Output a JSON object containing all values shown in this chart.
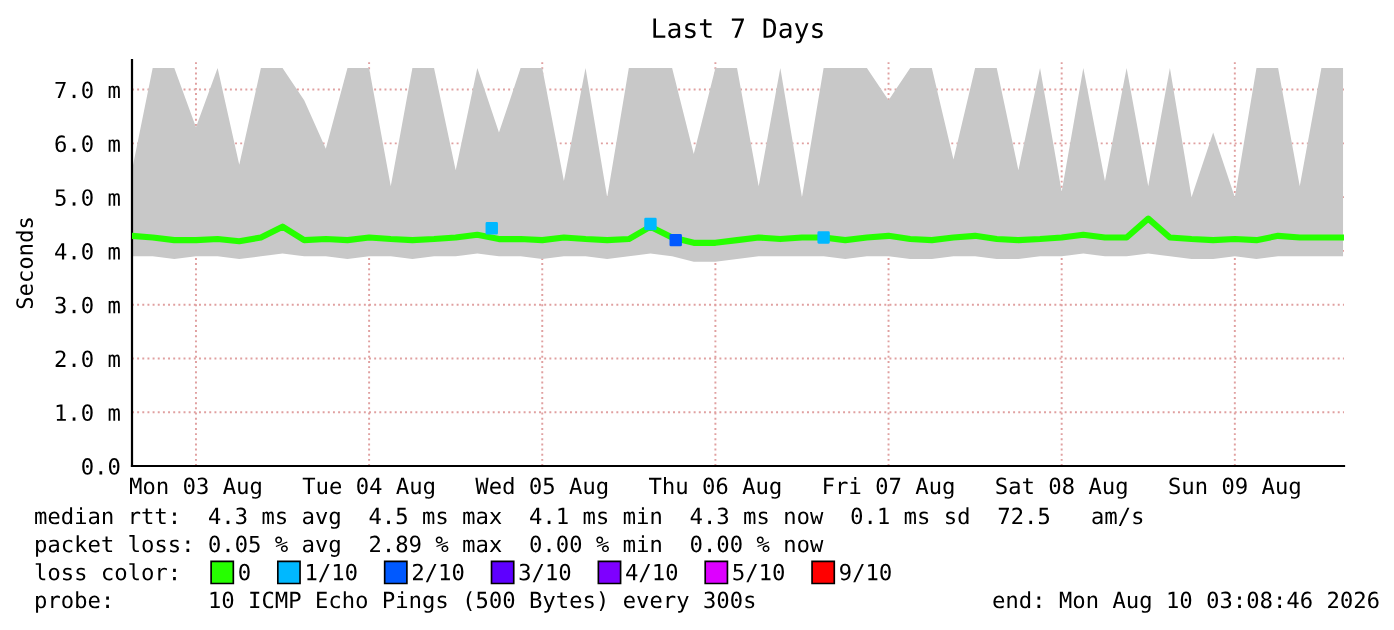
{
  "chart_data": {
    "type": "line",
    "title": "Last 7 Days",
    "ylabel": "Seconds",
    "legend_title": "loss color:",
    "x": [
      "2026-08-03T03:08",
      "2026-08-03T06:00",
      "2026-08-03T09:00",
      "2026-08-03T12:00",
      "2026-08-03T15:00",
      "2026-08-03T18:00",
      "2026-08-03T21:00",
      "2026-08-04T00:00",
      "2026-08-04T03:00",
      "2026-08-04T06:00",
      "2026-08-04T09:00",
      "2026-08-04T12:00",
      "2026-08-04T15:00",
      "2026-08-04T18:00",
      "2026-08-04T21:00",
      "2026-08-05T00:00",
      "2026-08-05T03:00",
      "2026-08-05T06:00",
      "2026-08-05T09:00",
      "2026-08-05T12:00",
      "2026-08-05T15:00",
      "2026-08-05T18:00",
      "2026-08-05T21:00",
      "2026-08-06T00:00",
      "2026-08-06T03:00",
      "2026-08-06T06:00",
      "2026-08-06T09:00",
      "2026-08-06T12:00",
      "2026-08-06T15:00",
      "2026-08-06T18:00",
      "2026-08-06T21:00",
      "2026-08-07T00:00",
      "2026-08-07T03:00",
      "2026-08-07T06:00",
      "2026-08-07T09:00",
      "2026-08-07T12:00",
      "2026-08-07T15:00",
      "2026-08-07T18:00",
      "2026-08-07T21:00",
      "2026-08-08T00:00",
      "2026-08-08T03:00",
      "2026-08-08T06:00",
      "2026-08-08T09:00",
      "2026-08-08T12:00",
      "2026-08-08T15:00",
      "2026-08-08T18:00",
      "2026-08-08T21:00",
      "2026-08-09T00:00",
      "2026-08-09T03:00",
      "2026-08-09T06:00",
      "2026-08-09T09:00",
      "2026-08-09T12:00",
      "2026-08-09T15:00",
      "2026-08-09T18:00",
      "2026-08-09T21:00",
      "2026-08-10T00:00",
      "2026-08-10T03:00"
    ],
    "series": [
      {
        "name": "0",
        "color": "#26ff00",
        "values": [
          4.28,
          4.25,
          4.2,
          4.2,
          4.22,
          4.18,
          4.25,
          4.45,
          4.2,
          4.22,
          4.2,
          4.25,
          4.22,
          4.2,
          4.22,
          4.25,
          4.3,
          4.22,
          4.22,
          4.2,
          4.25,
          4.22,
          4.2,
          4.22,
          4.45,
          4.25,
          4.15,
          4.15,
          4.2,
          4.25,
          4.22,
          4.25,
          4.25,
          4.2,
          4.25,
          4.28,
          4.22,
          4.2,
          4.25,
          4.28,
          4.22,
          4.2,
          4.22,
          4.25,
          4.3,
          4.25,
          4.25,
          4.6,
          4.25,
          4.22,
          4.2,
          4.22,
          4.2,
          4.28,
          4.25,
          4.25,
          4.25
        ],
        "lower": [
          3.9,
          3.9,
          3.85,
          3.9,
          3.9,
          3.85,
          3.9,
          3.95,
          3.9,
          3.9,
          3.85,
          3.9,
          3.9,
          3.85,
          3.9,
          3.9,
          3.95,
          3.9,
          3.9,
          3.85,
          3.9,
          3.9,
          3.85,
          3.9,
          3.95,
          3.9,
          3.8,
          3.8,
          3.85,
          3.9,
          3.9,
          3.9,
          3.9,
          3.85,
          3.9,
          3.9,
          3.85,
          3.85,
          3.9,
          3.9,
          3.85,
          3.85,
          3.9,
          3.9,
          3.95,
          3.9,
          3.9,
          3.95,
          3.9,
          3.85,
          3.85,
          3.9,
          3.85,
          3.9,
          3.9,
          3.9,
          3.9
        ],
        "upper": [
          5.5,
          7.4,
          7.4,
          6.3,
          7.4,
          5.6,
          7.4,
          7.4,
          6.8,
          5.9,
          7.4,
          7.4,
          5.2,
          7.4,
          7.4,
          5.5,
          7.4,
          6.2,
          7.4,
          7.4,
          5.3,
          7.4,
          5.0,
          7.4,
          7.4,
          7.4,
          5.8,
          7.4,
          7.4,
          5.2,
          7.4,
          5.0,
          7.4,
          7.4,
          7.4,
          6.8,
          7.4,
          7.4,
          5.7,
          7.4,
          7.4,
          5.5,
          7.4,
          5.1,
          7.4,
          5.3,
          7.4,
          5.2,
          7.4,
          5.0,
          6.2,
          5.0,
          7.4,
          7.4,
          5.2,
          7.4,
          7.4
        ]
      },
      {
        "name": "1/10",
        "type": "scatter",
        "marker": "square",
        "color": "#00b8ff",
        "x": [
          "2026-08-05T05:00",
          "2026-08-06T03:00",
          "2026-08-07T03:00"
        ],
        "values": [
          4.42,
          4.5,
          4.25
        ]
      },
      {
        "name": "2/10",
        "type": "scatter",
        "marker": "square",
        "color": "#0059ff",
        "x": [
          "2026-08-06T06:30"
        ],
        "values": [
          4.2
        ]
      },
      {
        "name": "3/10",
        "type": "scatter",
        "color": "#5e00ff",
        "marker": "square",
        "values": [
          null,
          null,
          null,
          null,
          null,
          null,
          null,
          null,
          null,
          null,
          null,
          null,
          null,
          null,
          null,
          null,
          null,
          null,
          null,
          null,
          null,
          null,
          null,
          null,
          null,
          null,
          null,
          null,
          null,
          null,
          null,
          null,
          null,
          null,
          null,
          null,
          null,
          null,
          null,
          null,
          null,
          null,
          null,
          null,
          null,
          null,
          null,
          null,
          null,
          null,
          null,
          null,
          null,
          null,
          null,
          null,
          null
        ]
      },
      {
        "name": "4/10",
        "type": "scatter",
        "color": "#7e00ff",
        "marker": "square",
        "values": [
          null,
          null,
          null,
          null,
          null,
          null,
          null,
          null,
          null,
          null,
          null,
          null,
          null,
          null,
          null,
          null,
          null,
          null,
          null,
          null,
          null,
          null,
          null,
          null,
          null,
          null,
          null,
          null,
          null,
          null,
          null,
          null,
          null,
          null,
          null,
          null,
          null,
          null,
          null,
          null,
          null,
          null,
          null,
          null,
          null,
          null,
          null,
          null,
          null,
          null,
          null,
          null,
          null,
          null,
          null,
          null,
          null
        ]
      },
      {
        "name": "5/10",
        "type": "scatter",
        "color": "#dd00ff",
        "marker": "square",
        "values": [
          null,
          null,
          null,
          null,
          null,
          null,
          null,
          null,
          null,
          null,
          null,
          null,
          null,
          null,
          null,
          null,
          null,
          null,
          null,
          null,
          null,
          null,
          null,
          null,
          null,
          null,
          null,
          null,
          null,
          null,
          null,
          null,
          null,
          null,
          null,
          null,
          null,
          null,
          null,
          null,
          null,
          null,
          null,
          null,
          null,
          null,
          null,
          null,
          null,
          null,
          null,
          null,
          null,
          null,
          null,
          null,
          null
        ]
      },
      {
        "name": "9/10",
        "type": "scatter",
        "color": "#ff0000",
        "marker": "square",
        "values": [
          null,
          null,
          null,
          null,
          null,
          null,
          null,
          null,
          null,
          null,
          null,
          null,
          null,
          null,
          null,
          null,
          null,
          null,
          null,
          null,
          null,
          null,
          null,
          null,
          null,
          null,
          null,
          null,
          null,
          null,
          null,
          null,
          null,
          null,
          null,
          null,
          null,
          null,
          null,
          null,
          null,
          null,
          null,
          null,
          null,
          null,
          null,
          null,
          null,
          null,
          null,
          null,
          null,
          null,
          null,
          null,
          null
        ]
      }
    ],
    "xlim": [
      "2026-08-03T03:08",
      "2026-08-10T03:08"
    ],
    "xticks": [
      {
        "value": "2026-08-03T12:00",
        "label": "Mon 03 Aug"
      },
      {
        "value": "2026-08-04T12:00",
        "label": "Tue 04 Aug"
      },
      {
        "value": "2026-08-05T12:00",
        "label": "Wed 05 Aug"
      },
      {
        "value": "2026-08-06T12:00",
        "label": "Thu 06 Aug"
      },
      {
        "value": "2026-08-07T12:00",
        "label": "Fri 07 Aug"
      },
      {
        "value": "2026-08-08T12:00",
        "label": "Sat 08 Aug"
      },
      {
        "value": "2026-08-09T12:00",
        "label": "Sun 09 Aug"
      }
    ],
    "ylim": [
      0,
      7.55
    ],
    "yticks": [
      {
        "value": 0,
        "label": "0.0"
      },
      {
        "value": 1,
        "label": "1.0 m"
      },
      {
        "value": 2,
        "label": "2.0 m"
      },
      {
        "value": 3,
        "label": "3.0 m"
      },
      {
        "value": 4,
        "label": "4.0 m"
      },
      {
        "value": 5,
        "label": "5.0 m"
      },
      {
        "value": 6,
        "label": "6.0 m"
      },
      {
        "value": 7,
        "label": "7.0 m"
      }
    ],
    "grid": true,
    "legend": "bottom",
    "marker": "none",
    "line_style": "solid",
    "annotations": [
      "median rtt:  4.3 ms avg  4.5 ms max  4.1 ms min  4.3 ms now  0.1 ms sd  72.5   am/s",
      "packet loss: 0.05 % avg  2.89 % max  0.00 % min  0.00 % now",
      "probe:       10 ICMP Echo Pings (500 Bytes) every 300s",
      "end: Mon Aug 10 03:08:46 2026"
    ]
  }
}
